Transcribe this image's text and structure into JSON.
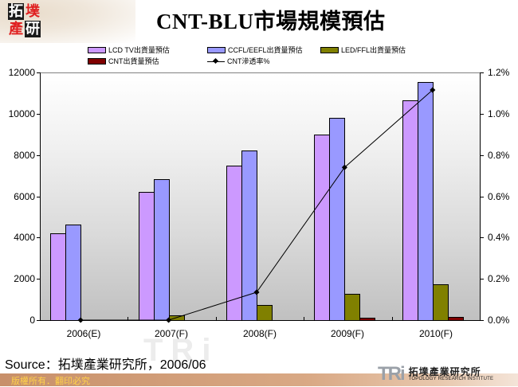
{
  "header": {
    "logo_chars": [
      "拓",
      "墣",
      "產",
      "研"
    ],
    "title": "CNT-BLU市場規模預估"
  },
  "legend": [
    {
      "label": "LCD TV出貨量預估",
      "color": "#cc99ff",
      "type": "bar"
    },
    {
      "label": "CCFL/EEFL出貨量預估",
      "color": "#9999ff",
      "type": "bar"
    },
    {
      "label": "LED/FFL出貨量預估",
      "color": "#808000",
      "type": "bar"
    },
    {
      "label": "CNT出貨量預估",
      "color": "#800000",
      "type": "bar"
    },
    {
      "label": "CNT滲透率%",
      "color": "#000000",
      "type": "line"
    }
  ],
  "chart_data": {
    "type": "bar",
    "title": "CNT-BLU市場規模預估",
    "xlabel": "",
    "ylabel": "",
    "categories": [
      "2006(E)",
      "2007(F)",
      "2008(F)",
      "2009(F)",
      "2010(F)"
    ],
    "series": [
      {
        "name": "LCD TV出貨量預估",
        "type": "bar",
        "axis": "left",
        "color": "#cc99ff",
        "values": [
          4200,
          6200,
          7500,
          9000,
          10650
        ]
      },
      {
        "name": "CCFL/EEFL出貨量預估",
        "type": "bar",
        "axis": "left",
        "color": "#9999ff",
        "values": [
          4620,
          6830,
          8200,
          9800,
          11530
        ]
      },
      {
        "name": "LED/FFL出貨量預估",
        "type": "bar",
        "axis": "left",
        "color": "#808000",
        "values": [
          0,
          230,
          730,
          1270,
          1740
        ]
      },
      {
        "name": "CNT出貨量預估",
        "type": "bar",
        "axis": "left",
        "color": "#800000",
        "values": [
          0,
          0,
          0,
          100,
          150
        ]
      },
      {
        "name": "CNT滲透率%",
        "type": "line",
        "axis": "right",
        "color": "#000000",
        "values": [
          0.0,
          0.0,
          0.135,
          0.74,
          1.115
        ]
      }
    ],
    "ylim": [
      0,
      12000
    ],
    "y_ticks": [
      "0",
      "2000",
      "4000",
      "6000",
      "8000",
      "10000",
      "12000"
    ],
    "y2lim": [
      0,
      1.2
    ],
    "y2_ticks": [
      "0.0%",
      "0.2%",
      "0.4%",
      "0.6%",
      "0.8%",
      "1.0%",
      "1.2%"
    ],
    "grid": false,
    "legend_position": "top"
  },
  "footer": {
    "source": "Source：拓墣產業研究所，2006/06",
    "copyright": "版權所有．翻印必究",
    "brand_mark": "TRi",
    "brand_cn": "拓墣產業研究所",
    "brand_en": "TOPOLOGY RESEARCH INSTITUTE",
    "watermark": "TRi"
  }
}
